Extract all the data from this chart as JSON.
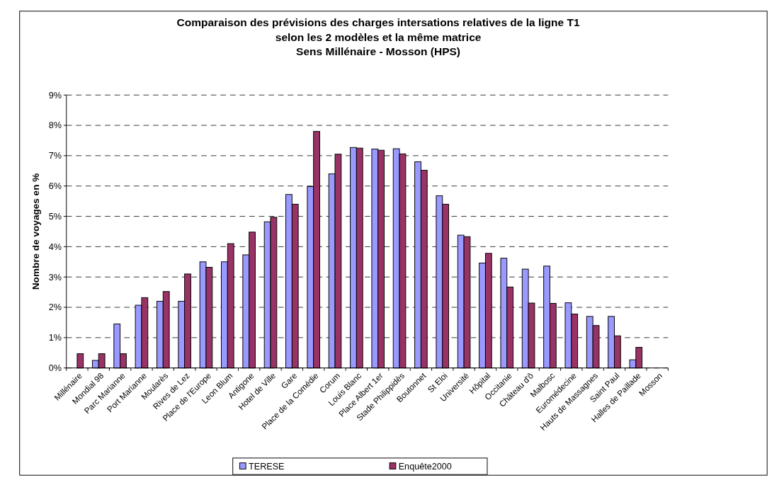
{
  "chart_data": {
    "type": "bar",
    "title": "Comparaison des prévisions des charges intersations relatives de la ligne T1\nselon les 2 modèles et la même matrice\nSens Millénaire - Mosson (HPS)",
    "ylabel": "Nombre de voyages en %",
    "categories": [
      "Millénaire",
      "Mondial 98",
      "Parc Marianne",
      "Port Marianne",
      "Moularès",
      "Rives de Lez",
      "Place de l'Europe",
      "Leon Blum",
      "Antigone",
      "Hotel de Ville",
      "Gare",
      "Place de la Comédie",
      "Corum",
      "Louis Blanc",
      "Place Albert 1er",
      "Stade Philippidès",
      "Boutonnet",
      "St Eloi",
      "Université",
      "Hôpital",
      "Occitanie",
      "Château d'ô",
      "Malbosc",
      "Euromédecine",
      "Hauts de Massagnes",
      "Saint Paul",
      "Halles de Paillade",
      "Mosson"
    ],
    "series": [
      {
        "name": "TERESE",
        "color": "#9999ff",
        "values": [
          null,
          0.25,
          1.45,
          2.07,
          2.2,
          2.2,
          3.5,
          3.5,
          3.73,
          4.82,
          5.72,
          5.98,
          6.4,
          7.27,
          7.22,
          7.23,
          6.8,
          5.68,
          4.38,
          3.46,
          3.62,
          3.26,
          3.36,
          2.15,
          1.7,
          1.7,
          0.27,
          null
        ]
      },
      {
        "name": "Enquête2000",
        "color": "#993366",
        "values": [
          0.47,
          0.47,
          0.47,
          2.32,
          2.52,
          3.1,
          3.32,
          4.1,
          4.48,
          4.97,
          5.4,
          7.8,
          7.05,
          7.25,
          7.18,
          7.06,
          6.52,
          5.4,
          4.33,
          3.78,
          2.67,
          2.14,
          2.13,
          1.78,
          1.4,
          1.06,
          0.68,
          null
        ]
      }
    ],
    "ylim": [
      0,
      9
    ],
    "yticks": [
      {
        "value": 0,
        "label": "0%"
      },
      {
        "value": 1,
        "label": "1%"
      },
      {
        "value": 2,
        "label": "2%"
      },
      {
        "value": 3,
        "label": "3%"
      },
      {
        "value": 4,
        "label": "4%"
      },
      {
        "value": 5,
        "label": "5%"
      },
      {
        "value": 6,
        "label": "6%"
      },
      {
        "value": 7,
        "label": "7%"
      },
      {
        "value": 8,
        "label": "8%"
      },
      {
        "value": 9,
        "label": "9%"
      }
    ],
    "grid": "y",
    "legend": "bottom"
  }
}
